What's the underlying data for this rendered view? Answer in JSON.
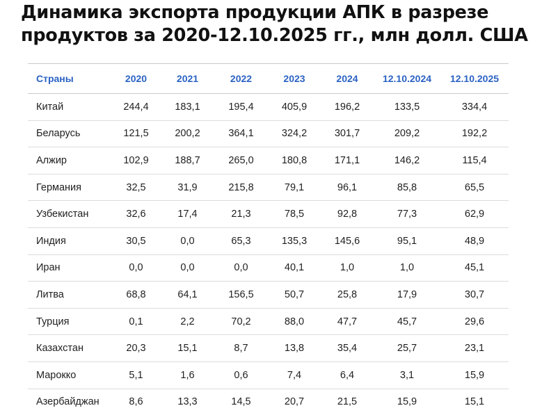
{
  "title": {
    "line1": "Динамика экспорта продукции АПК в разрезе",
    "line2": "продуктов за 2020-12.10.2025 гг., млн долл. США"
  },
  "table": {
    "headers": [
      "Страны",
      "2020",
      "2021",
      "2022",
      "2023",
      "2024",
      "12.10.2024",
      "12.10.2025"
    ],
    "rows": [
      [
        "Китай",
        "244,4",
        "183,1",
        "195,4",
        "405,9",
        "196,2",
        "133,5",
        "334,4"
      ],
      [
        "Беларусь",
        "121,5",
        "200,2",
        "364,1",
        "324,2",
        "301,7",
        "209,2",
        "192,2"
      ],
      [
        "Алжир",
        "102,9",
        "188,7",
        "265,0",
        "180,8",
        "171,1",
        "146,2",
        "115,4"
      ],
      [
        "Германия",
        "32,5",
        "31,9",
        "215,8",
        "79,1",
        "96,1",
        "85,8",
        "65,5"
      ],
      [
        "Узбекистан",
        "32,6",
        "17,4",
        "21,3",
        "78,5",
        "92,8",
        "77,3",
        "62,9"
      ],
      [
        "Индия",
        "30,5",
        "0,0",
        "65,3",
        "135,3",
        "145,6",
        "95,1",
        "48,9"
      ],
      [
        "Иран",
        "0,0",
        "0,0",
        "0,0",
        "40,1",
        "1,0",
        "1,0",
        "45,1"
      ],
      [
        "Литва",
        "68,8",
        "64,1",
        "156,5",
        "50,7",
        "25,8",
        "17,9",
        "30,7"
      ],
      [
        "Турция",
        "0,1",
        "2,2",
        "70,2",
        "88,0",
        "47,7",
        "45,7",
        "29,6"
      ],
      [
        "Казахстан",
        "20,3",
        "15,1",
        "8,7",
        "13,8",
        "35,4",
        "25,7",
        "23,1"
      ],
      [
        "Марокко",
        "5,1",
        "1,6",
        "0,6",
        "7,4",
        "6,4",
        "3,1",
        "15,9"
      ],
      [
        "Азербайджан",
        "8,6",
        "13,3",
        "14,5",
        "20,7",
        "21,5",
        "15,9",
        "15,1"
      ]
    ]
  },
  "colors": {
    "header_text": "#2b62c4",
    "body_text": "#1f1f1f",
    "row_border": "#dcdcdc"
  }
}
